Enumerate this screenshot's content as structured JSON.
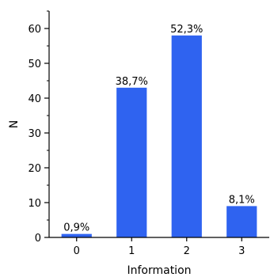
{
  "chart_data": {
    "type": "bar",
    "title": "",
    "xlabel": "Information",
    "ylabel": "N",
    "categories": [
      "0",
      "1",
      "2",
      "3"
    ],
    "values": [
      1,
      43,
      58,
      9
    ],
    "data_labels": [
      "0,9%",
      "38,7%",
      "52,3%",
      "8,1%"
    ],
    "ylim": [
      0,
      65
    ],
    "yticks": [
      0,
      10,
      20,
      30,
      40,
      50,
      60
    ],
    "grid": false,
    "legend": "none",
    "bar_color": "#2f63f0"
  }
}
